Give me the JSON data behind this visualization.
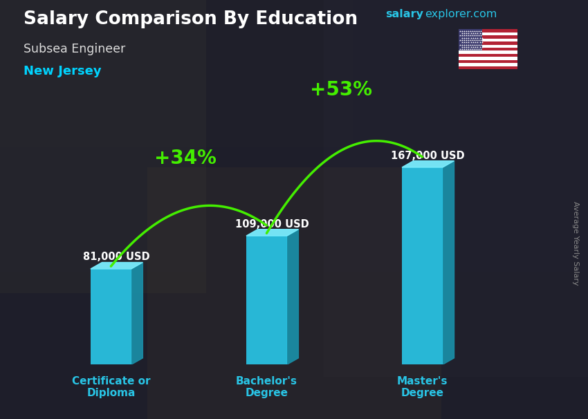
{
  "title_main": "Salary Comparison By Education",
  "subtitle_job": "Subsea Engineer",
  "subtitle_location": "New Jersey",
  "ylabel": "Average Yearly Salary",
  "watermark_salary": "salary",
  "watermark_rest": "explorer.com",
  "categories": [
    "Certificate or\nDiploma",
    "Bachelor's\nDegree",
    "Master's\nDegree"
  ],
  "values": [
    81000,
    109000,
    167000
  ],
  "value_labels": [
    "81,000 USD",
    "109,000 USD",
    "167,000 USD"
  ],
  "pct_labels": [
    "+34%",
    "+53%"
  ],
  "bar_color_face": "#29c5e6",
  "bar_color_light": "#5ddcf5",
  "bar_color_side": "#1a8fa8",
  "bar_color_top": "#7aeeff",
  "bg_color": "#2a2a3a",
  "title_color": "#ffffff",
  "subtitle_job_color": "#dddddd",
  "subtitle_loc_color": "#00d4ff",
  "value_label_color": "#ffffff",
  "pct_label_color": "#88ff00",
  "arrow_color": "#44ee00",
  "xtick_color": "#29c5e6",
  "watermark_salary_color": "#29c5e6",
  "watermark_rest_color": "#29c5e6",
  "ylabel_color": "#888888",
  "ylim_max": 220000,
  "x_positions": [
    1.4,
    3.5,
    5.6
  ],
  "bar_width": 0.55,
  "x_lim": [
    0.3,
    7.2
  ]
}
